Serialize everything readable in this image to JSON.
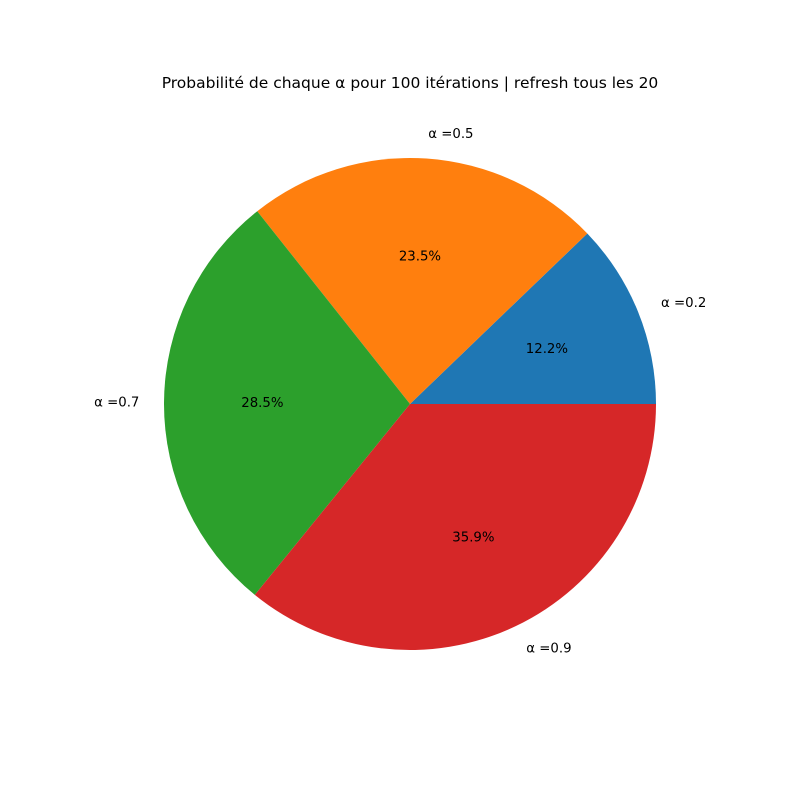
{
  "chart_data": {
    "type": "pie",
    "title": "Probabilité de chaque α pour 100 itérations | refresh tous les 20",
    "labels": [
      "α =0.2",
      "α =0.5",
      "α =0.7",
      "α =0.9"
    ],
    "values": [
      12.2,
      23.5,
      28.5,
      35.9
    ],
    "percent_labels": [
      "12.2%",
      "23.5%",
      "28.5%",
      "35.9%"
    ],
    "colors": [
      "#1f77b4",
      "#ff7f0e",
      "#2ca02c",
      "#d62728"
    ],
    "start_angle_deg": 0,
    "direction": "counterclockwise"
  }
}
